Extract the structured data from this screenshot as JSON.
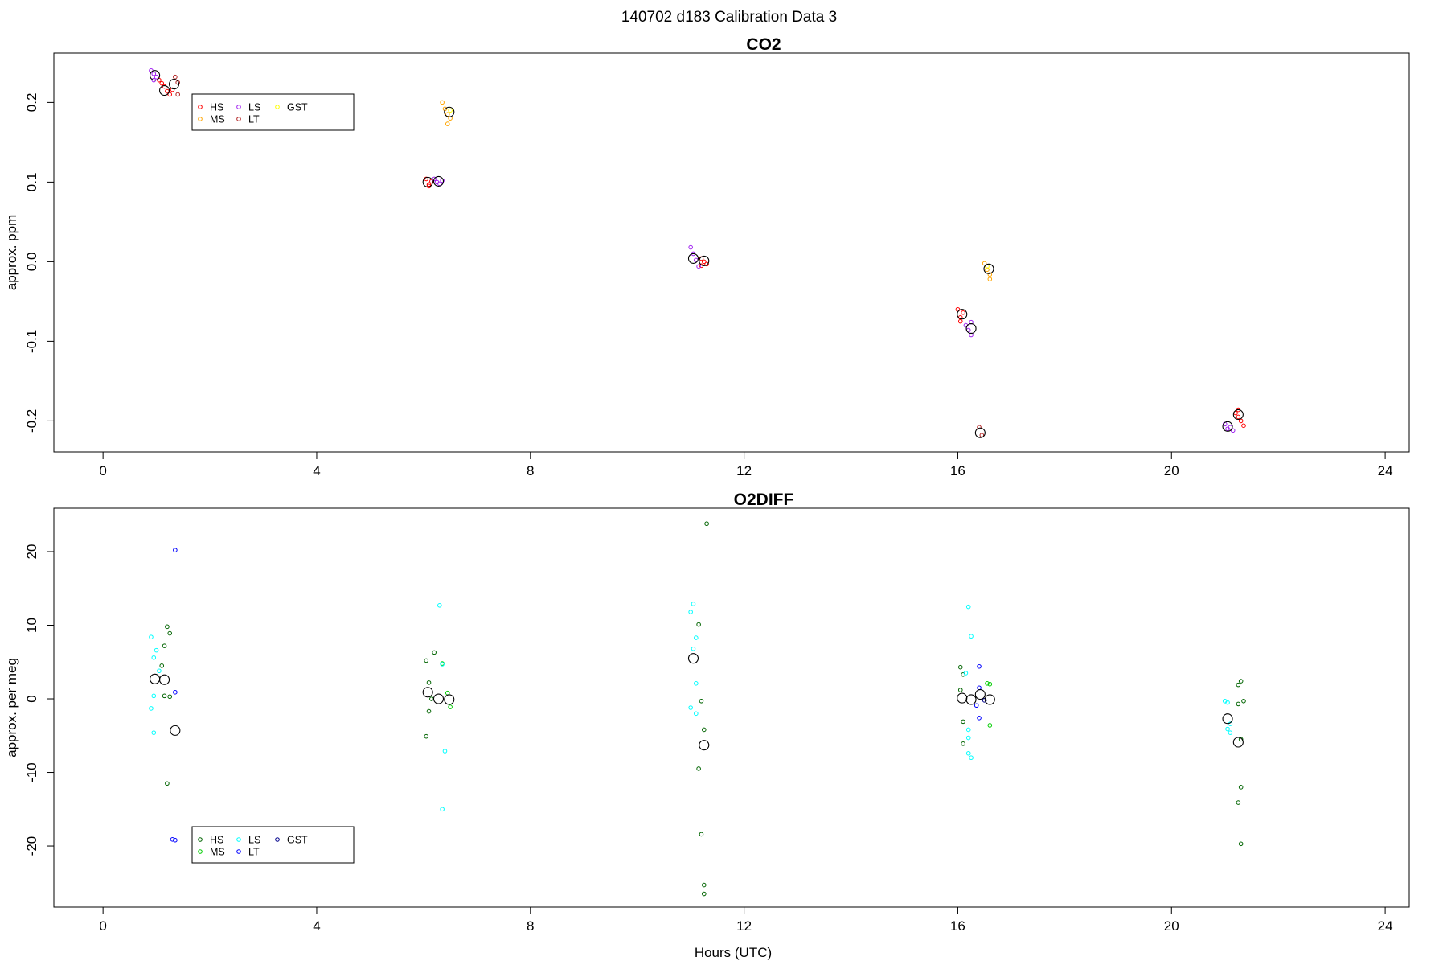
{
  "page": {
    "title": "140702   d183   Calibration Data 3"
  },
  "chart_data": [
    {
      "type": "scatter",
      "title": "CO2",
      "xlabel": "",
      "ylabel": "approx. ppm",
      "xlim": [
        -0.92,
        24.45
      ],
      "ylim": [
        -0.239,
        0.262
      ],
      "xticks": [
        "0",
        "4",
        "8",
        "12",
        "16",
        "20",
        "24"
      ],
      "yticks": [
        "-0.2",
        "-0.1",
        "0.0",
        "0.1",
        "0.2"
      ],
      "grid": false,
      "legend": {
        "placement": "top-left",
        "entries": [
          {
            "label": "HS",
            "color": "#ff0000"
          },
          {
            "label": "MS",
            "color": "#ffa500"
          },
          {
            "label": "LS",
            "color": "#a020f0"
          },
          {
            "label": "LT",
            "color": "#b22222"
          },
          {
            "label": "GST",
            "color": "#ffff00"
          }
        ]
      },
      "series": [
        {
          "name": "HS",
          "color": "#ff0000",
          "points": [
            [
              1.05,
              0.228
            ],
            [
              1.1,
              0.224
            ],
            [
              1.15,
              0.22
            ],
            [
              1.2,
              0.214
            ],
            [
              1.25,
              0.21
            ],
            [
              1.3,
              0.216
            ],
            [
              6.05,
              0.104
            ],
            [
              6.1,
              0.097
            ],
            [
              6.15,
              0.101
            ],
            [
              6.1,
              0.095
            ],
            [
              11.2,
              0.004
            ],
            [
              11.25,
              0.0
            ],
            [
              11.3,
              -0.003
            ],
            [
              11.2,
              -0.005
            ],
            [
              16.0,
              -0.06
            ],
            [
              16.05,
              -0.07
            ],
            [
              16.1,
              -0.064
            ],
            [
              16.05,
              -0.075
            ],
            [
              21.2,
              -0.19
            ],
            [
              21.25,
              -0.195
            ],
            [
              21.3,
              -0.2
            ],
            [
              21.35,
              -0.206
            ],
            [
              21.25,
              -0.186
            ]
          ]
        },
        {
          "name": "MS",
          "color": "#ffa500",
          "points": [
            [
              6.35,
              0.2
            ],
            [
              6.4,
              0.192
            ],
            [
              6.45,
              0.185
            ],
            [
              6.5,
              0.18
            ],
            [
              6.45,
              0.173
            ],
            [
              16.5,
              -0.002
            ],
            [
              16.55,
              -0.01
            ],
            [
              16.6,
              -0.016
            ],
            [
              16.6,
              -0.022
            ]
          ]
        },
        {
          "name": "LS",
          "color": "#a020f0",
          "points": [
            [
              0.9,
              0.24
            ],
            [
              0.95,
              0.236
            ],
            [
              1.0,
              0.232
            ],
            [
              0.95,
              0.228
            ],
            [
              6.2,
              0.104
            ],
            [
              6.25,
              0.1
            ],
            [
              6.3,
              0.098
            ],
            [
              6.35,
              0.102
            ],
            [
              11.0,
              0.018
            ],
            [
              11.05,
              0.01
            ],
            [
              11.1,
              0.002
            ],
            [
              11.15,
              -0.006
            ],
            [
              16.15,
              -0.08
            ],
            [
              16.2,
              -0.086
            ],
            [
              16.25,
              -0.092
            ],
            [
              16.25,
              -0.076
            ],
            [
              21.0,
              -0.204
            ],
            [
              21.05,
              -0.21
            ],
            [
              21.1,
              -0.208
            ],
            [
              21.15,
              -0.212
            ]
          ]
        },
        {
          "name": "LT",
          "color": "#b22222",
          "points": [
            [
              1.35,
              0.232
            ],
            [
              1.4,
              0.225
            ],
            [
              1.4,
              0.21
            ],
            [
              16.4,
              -0.208
            ],
            [
              16.45,
              -0.218
            ]
          ]
        },
        {
          "name": "GST",
          "color": "#ffff00",
          "points": [
            [
              6.5,
              0.19
            ],
            [
              16.55,
              -0.006
            ]
          ]
        }
      ],
      "means": [
        [
          0.97,
          0.234
        ],
        [
          1.15,
          0.215
        ],
        [
          1.33,
          0.223
        ],
        [
          6.08,
          0.1
        ],
        [
          6.28,
          0.101
        ],
        [
          6.48,
          0.188
        ],
        [
          11.05,
          0.004
        ],
        [
          11.25,
          0.001
        ],
        [
          16.08,
          -0.066
        ],
        [
          16.25,
          -0.084
        ],
        [
          16.58,
          -0.009
        ],
        [
          16.42,
          -0.215
        ],
        [
          21.05,
          -0.207
        ],
        [
          21.25,
          -0.192
        ]
      ]
    },
    {
      "type": "scatter",
      "title": "O2DIFF",
      "xlabel": "Hours (UTC)",
      "ylabel": "approx. per meg",
      "xlim": [
        -0.92,
        24.45
      ],
      "ylim": [
        -28.3,
        25.9
      ],
      "xticks": [
        "0",
        "4",
        "8",
        "12",
        "16",
        "20",
        "24"
      ],
      "yticks": [
        "-20",
        "-10",
        "0",
        "10",
        "20"
      ],
      "grid": false,
      "legend": {
        "placement": "bottom-left",
        "entries": [
          {
            "label": "HS",
            "color": "#006400"
          },
          {
            "label": "MS",
            "color": "#00cd00"
          },
          {
            "label": "LS",
            "color": "#00ffff"
          },
          {
            "label": "LT",
            "color": "#0000ff"
          },
          {
            "label": "GST",
            "color": "#00008b"
          }
        ]
      },
      "series": [
        {
          "name": "HS",
          "color": "#006400",
          "points": [
            [
              1.1,
              4.5
            ],
            [
              1.15,
              7.2
            ],
            [
              1.2,
              9.8
            ],
            [
              1.25,
              8.9
            ],
            [
              1.15,
              0.4
            ],
            [
              1.25,
              0.3
            ],
            [
              1.2,
              -11.5
            ],
            [
              6.05,
              5.2
            ],
            [
              6.1,
              2.2
            ],
            [
              6.15,
              0.0
            ],
            [
              6.2,
              6.3
            ],
            [
              6.1,
              -1.7
            ],
            [
              6.05,
              -5.1
            ],
            [
              11.15,
              10.1
            ],
            [
              11.2,
              -0.3
            ],
            [
              11.25,
              -4.2
            ],
            [
              11.15,
              -9.5
            ],
            [
              11.2,
              -18.4
            ],
            [
              11.25,
              -25.3
            ],
            [
              11.25,
              -26.5
            ],
            [
              11.3,
              23.8
            ],
            [
              16.05,
              4.3
            ],
            [
              16.1,
              3.3
            ],
            [
              16.05,
              1.2
            ],
            [
              16.1,
              -3.1
            ],
            [
              16.1,
              -6.1
            ],
            [
              21.25,
              1.9
            ],
            [
              21.3,
              2.4
            ],
            [
              21.35,
              -0.3
            ],
            [
              21.25,
              -0.7
            ],
            [
              21.3,
              -5.5
            ],
            [
              21.3,
              -12.0
            ],
            [
              21.25,
              -14.1
            ],
            [
              21.3,
              -19.7
            ]
          ]
        },
        {
          "name": "MS",
          "color": "#00cd00",
          "points": [
            [
              6.35,
              4.8
            ],
            [
              6.45,
              0.8
            ],
            [
              6.5,
              -1.1
            ],
            [
              16.55,
              2.1
            ],
            [
              16.6,
              2.0
            ],
            [
              16.6,
              -3.6
            ]
          ]
        },
        {
          "name": "LS",
          "color": "#00ffff",
          "points": [
            [
              0.9,
              8.4
            ],
            [
              0.95,
              5.6
            ],
            [
              1.0,
              6.6
            ],
            [
              1.05,
              3.8
            ],
            [
              0.95,
              0.4
            ],
            [
              0.9,
              -1.3
            ],
            [
              0.95,
              -4.6
            ],
            [
              6.3,
              12.7
            ],
            [
              6.35,
              4.7
            ],
            [
              6.4,
              -7.1
            ],
            [
              6.35,
              -15.0
            ],
            [
              11.0,
              11.8
            ],
            [
              11.05,
              12.9
            ],
            [
              11.1,
              8.3
            ],
            [
              11.05,
              6.8
            ],
            [
              11.1,
              2.1
            ],
            [
              11.0,
              -1.2
            ],
            [
              11.1,
              -2.0
            ],
            [
              16.2,
              12.5
            ],
            [
              16.25,
              8.5
            ],
            [
              16.15,
              3.5
            ],
            [
              16.2,
              -4.2
            ],
            [
              16.2,
              -5.3
            ],
            [
              16.2,
              -7.4
            ],
            [
              16.25,
              -8.0
            ],
            [
              21.0,
              -0.3
            ],
            [
              21.05,
              -0.5
            ],
            [
              21.1,
              -3.4
            ],
            [
              21.05,
              -4.1
            ],
            [
              21.1,
              -4.6
            ]
          ]
        },
        {
          "name": "LT",
          "color": "#0000ff",
          "points": [
            [
              1.35,
              20.2
            ],
            [
              1.35,
              0.9
            ],
            [
              1.3,
              -19.1
            ],
            [
              1.35,
              -19.2
            ],
            [
              16.4,
              4.4
            ],
            [
              16.4,
              1.5
            ],
            [
              16.35,
              -0.9
            ],
            [
              16.4,
              -2.6
            ]
          ]
        },
        {
          "name": "GST",
          "color": "#00008b",
          "points": [
            [
              16.5,
              -0.2
            ]
          ]
        }
      ],
      "means": [
        [
          0.97,
          2.7
        ],
        [
          1.15,
          2.6
        ],
        [
          1.35,
          -4.3
        ],
        [
          6.08,
          0.9
        ],
        [
          6.28,
          0.0
        ],
        [
          6.48,
          -0.1
        ],
        [
          11.05,
          5.5
        ],
        [
          11.25,
          -6.3
        ],
        [
          16.08,
          0.1
        ],
        [
          16.25,
          -0.1
        ],
        [
          16.42,
          0.6
        ],
        [
          16.6,
          -0.1
        ],
        [
          21.05,
          -2.7
        ],
        [
          21.25,
          -5.9
        ]
      ]
    }
  ]
}
